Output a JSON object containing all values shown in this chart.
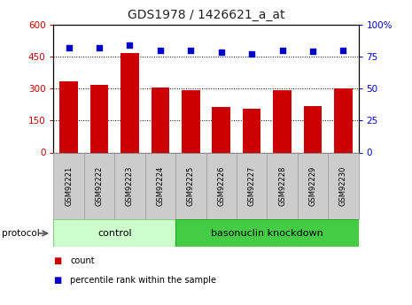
{
  "title": "GDS1978 / 1426621_a_at",
  "samples": [
    "GSM92221",
    "GSM92222",
    "GSM92223",
    "GSM92224",
    "GSM92225",
    "GSM92226",
    "GSM92227",
    "GSM92228",
    "GSM92229",
    "GSM92230"
  ],
  "count_values": [
    335,
    315,
    465,
    305,
    290,
    215,
    205,
    293,
    218,
    300
  ],
  "percentile_values": [
    82,
    82,
    84,
    80,
    80,
    78,
    77,
    80,
    79,
    80
  ],
  "bar_color": "#cc0000",
  "dot_color": "#0000cc",
  "ylim_left": [
    0,
    600
  ],
  "ylim_right": [
    0,
    100
  ],
  "yticks_left": [
    0,
    150,
    300,
    450,
    600
  ],
  "yticks_right": [
    0,
    25,
    50,
    75,
    100
  ],
  "grid_ticks": [
    150,
    300,
    450
  ],
  "n_control": 4,
  "n_knockdown": 6,
  "control_label": "control",
  "knockdown_label": "basonuclin knockdown",
  "protocol_label": "protocol",
  "legend_count": "count",
  "legend_percentile": "percentile rank within the sample",
  "bar_color_red": "#cc0000",
  "dot_color_blue": "#0000cc",
  "tick_color_left": "#cc0000",
  "tick_color_right": "#0000cc",
  "title_fontsize": 10,
  "title_color": "#222222",
  "control_facecolor": "#ccffcc",
  "knockdown_facecolor": "#44cc44",
  "sample_box_color": "#cccccc",
  "right_tick_labels": [
    "0",
    "25",
    "50",
    "75",
    "100%"
  ]
}
